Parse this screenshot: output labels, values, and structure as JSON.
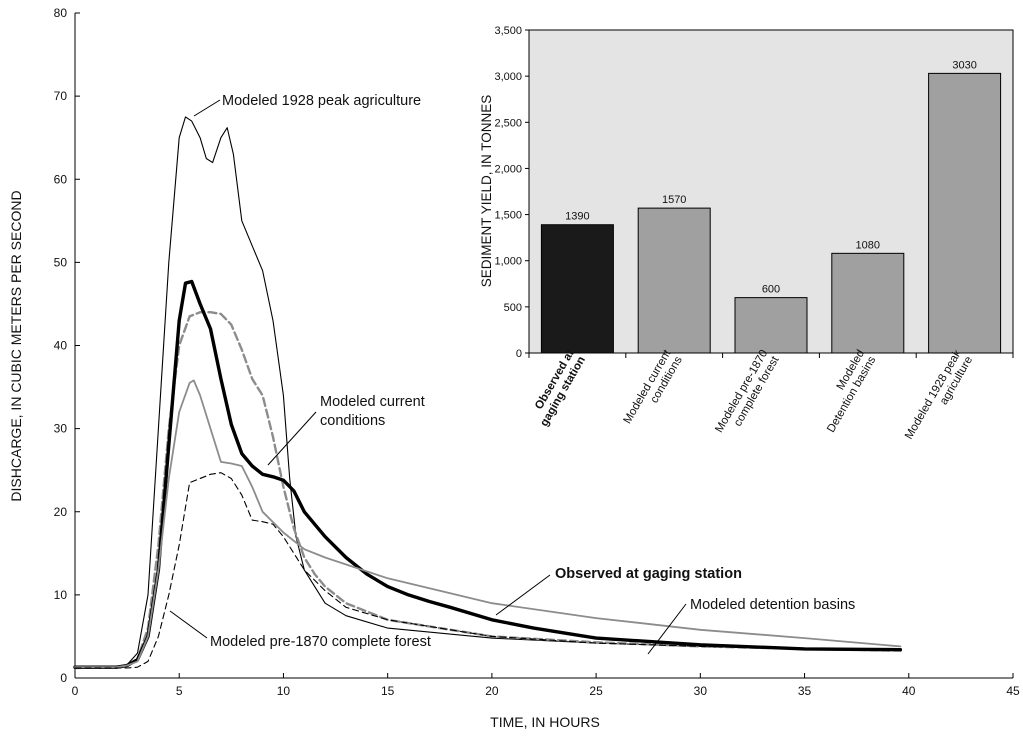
{
  "chart_data": [
    {
      "type": "line",
      "xlabel": "TIME, IN HOURS",
      "ylabel": "DISHCARGE, IN CUBIC METERS PER SECOND",
      "xlim": [
        0,
        45
      ],
      "ylim": [
        0,
        80
      ],
      "xticks": [
        0,
        5,
        10,
        15,
        20,
        25,
        30,
        35,
        40,
        45
      ],
      "yticks": [
        0,
        10,
        20,
        30,
        40,
        50,
        60,
        70,
        80
      ],
      "grid": false,
      "series": [
        {
          "name": "Modeled 1928 peak agriculture",
          "style": "thin-black",
          "x": [
            0,
            2,
            2.5,
            3,
            3.5,
            4,
            4.5,
            5,
            5.3,
            5.6,
            6,
            6.3,
            6.6,
            7,
            7.3,
            7.6,
            8,
            8.5,
            9,
            9.5,
            10,
            10.3,
            10.6,
            11,
            12,
            13,
            15,
            20,
            25,
            30,
            35,
            39.6
          ],
          "y": [
            1.2,
            1.3,
            1.6,
            3,
            10,
            30,
            50,
            65,
            67.5,
            67,
            65,
            62.5,
            62,
            65,
            66.2,
            63,
            55,
            52,
            49,
            43,
            34,
            24,
            17,
            13,
            9,
            7.5,
            6,
            4.8,
            4.2,
            3.8,
            3.5,
            3.3
          ]
        },
        {
          "name": "Modeled current conditions",
          "style": "gray-dashed",
          "x": [
            0,
            2,
            2.5,
            3,
            3.5,
            4,
            4.5,
            5,
            5.5,
            6,
            6.5,
            7,
            7.5,
            8,
            8.5,
            9,
            9.5,
            10,
            10.5,
            11,
            11.5,
            12,
            13,
            15,
            20,
            25,
            30,
            35,
            39.6
          ],
          "y": [
            1.2,
            1.3,
            1.5,
            2.3,
            6,
            16,
            30,
            40,
            43.5,
            44,
            44,
            43.8,
            42.5,
            39.5,
            36,
            34,
            29,
            23,
            18,
            14.5,
            12.5,
            11,
            9,
            7,
            5,
            4.3,
            3.8,
            3.5,
            3.3
          ]
        },
        {
          "name": "Observed at gaging station",
          "style": "thick-black",
          "x": [
            0,
            2,
            2.5,
            3,
            3.5,
            4,
            4.5,
            5,
            5.3,
            5.6,
            6,
            6.5,
            7,
            7.5,
            8,
            8.5,
            9,
            9.5,
            10,
            10.5,
            11,
            12,
            13,
            14,
            15,
            16,
            17,
            18,
            20,
            22,
            25,
            30,
            35,
            39.6
          ],
          "y": [
            1.3,
            1.3,
            1.5,
            2.2,
            5,
            13,
            28,
            43,
            47.5,
            47.7,
            45,
            42,
            36,
            30.5,
            27,
            25.5,
            24.5,
            24.2,
            23.8,
            22.5,
            20,
            17,
            14.5,
            12.5,
            11,
            10,
            9.2,
            8.5,
            7,
            6,
            4.8,
            4.0,
            3.5,
            3.4
          ]
        },
        {
          "name": "Modeled detention basins",
          "style": "thin-gray",
          "x": [
            0,
            2,
            2.5,
            3,
            3.5,
            4,
            4.5,
            5,
            5.5,
            5.7,
            6,
            6.5,
            7,
            7.5,
            8,
            8.5,
            9,
            10,
            11,
            12,
            15,
            20,
            25,
            30,
            35,
            39.6
          ],
          "y": [
            1.3,
            1.3,
            1.5,
            2,
            5,
            13,
            24,
            32,
            35.5,
            35.8,
            34,
            30,
            26,
            25.8,
            25.5,
            23,
            20,
            17.5,
            15.5,
            14.5,
            12,
            9,
            7.2,
            5.8,
            4.8,
            3.8
          ]
        },
        {
          "name": "Modeled pre-1870 complete forest",
          "style": "black-dashed",
          "x": [
            0,
            2,
            2.5,
            3,
            3.5,
            4,
            4.5,
            5,
            5.5,
            6,
            6.5,
            7,
            7.5,
            8,
            8.5,
            9,
            9.5,
            10,
            11,
            12,
            13,
            15,
            20,
            25,
            30,
            35,
            39.6
          ],
          "y": [
            1.2,
            1.2,
            1.2,
            1.3,
            2,
            5,
            10,
            16,
            23.5,
            24,
            24.5,
            24.7,
            24,
            22,
            19,
            18.8,
            18.5,
            17,
            13,
            10.5,
            8.5,
            7,
            5,
            4.2,
            3.8,
            3.5,
            3.3
          ]
        }
      ],
      "annotations": [
        {
          "text": "Modeled 1928 peak agriculture",
          "bold": false
        },
        {
          "text": "Modeled current",
          "bold": false
        },
        {
          "text": "conditions",
          "bold": false
        },
        {
          "text": "Observed at gaging station",
          "bold": true
        },
        {
          "text": "Modeled detention basins",
          "bold": false
        },
        {
          "text": "Modeled pre-1870 complete forest",
          "bold": false
        }
      ]
    },
    {
      "type": "bar",
      "ylabel": "SEDIMENT YIELD, IN TONNES",
      "ylim": [
        0,
        3500
      ],
      "yticks": [
        0,
        500,
        1000,
        1500,
        2000,
        2500,
        3000,
        3500
      ],
      "ytick_labels": [
        "0",
        "500",
        "1,000",
        "1,500",
        "2,000",
        "2,500",
        "3,000",
        "3,500"
      ],
      "background": "#e4e4e4",
      "categories": [
        [
          "Observed at",
          "gaging station"
        ],
        [
          "Modeled current",
          "conditions"
        ],
        [
          "Modeled pre-1870",
          "complete forest"
        ],
        [
          "Modeled",
          "Detention basins"
        ],
        [
          "Modeled 1928 peak",
          "agriculture"
        ]
      ],
      "values": [
        1390,
        1570,
        600,
        1080,
        3030
      ],
      "value_labels": [
        "1390",
        "1570",
        "600",
        "1080",
        "3030"
      ],
      "bar_colors": [
        "#1a1a1a",
        "#a0a0a0",
        "#a0a0a0",
        "#a0a0a0",
        "#a0a0a0"
      ],
      "bold_category": 0
    }
  ]
}
